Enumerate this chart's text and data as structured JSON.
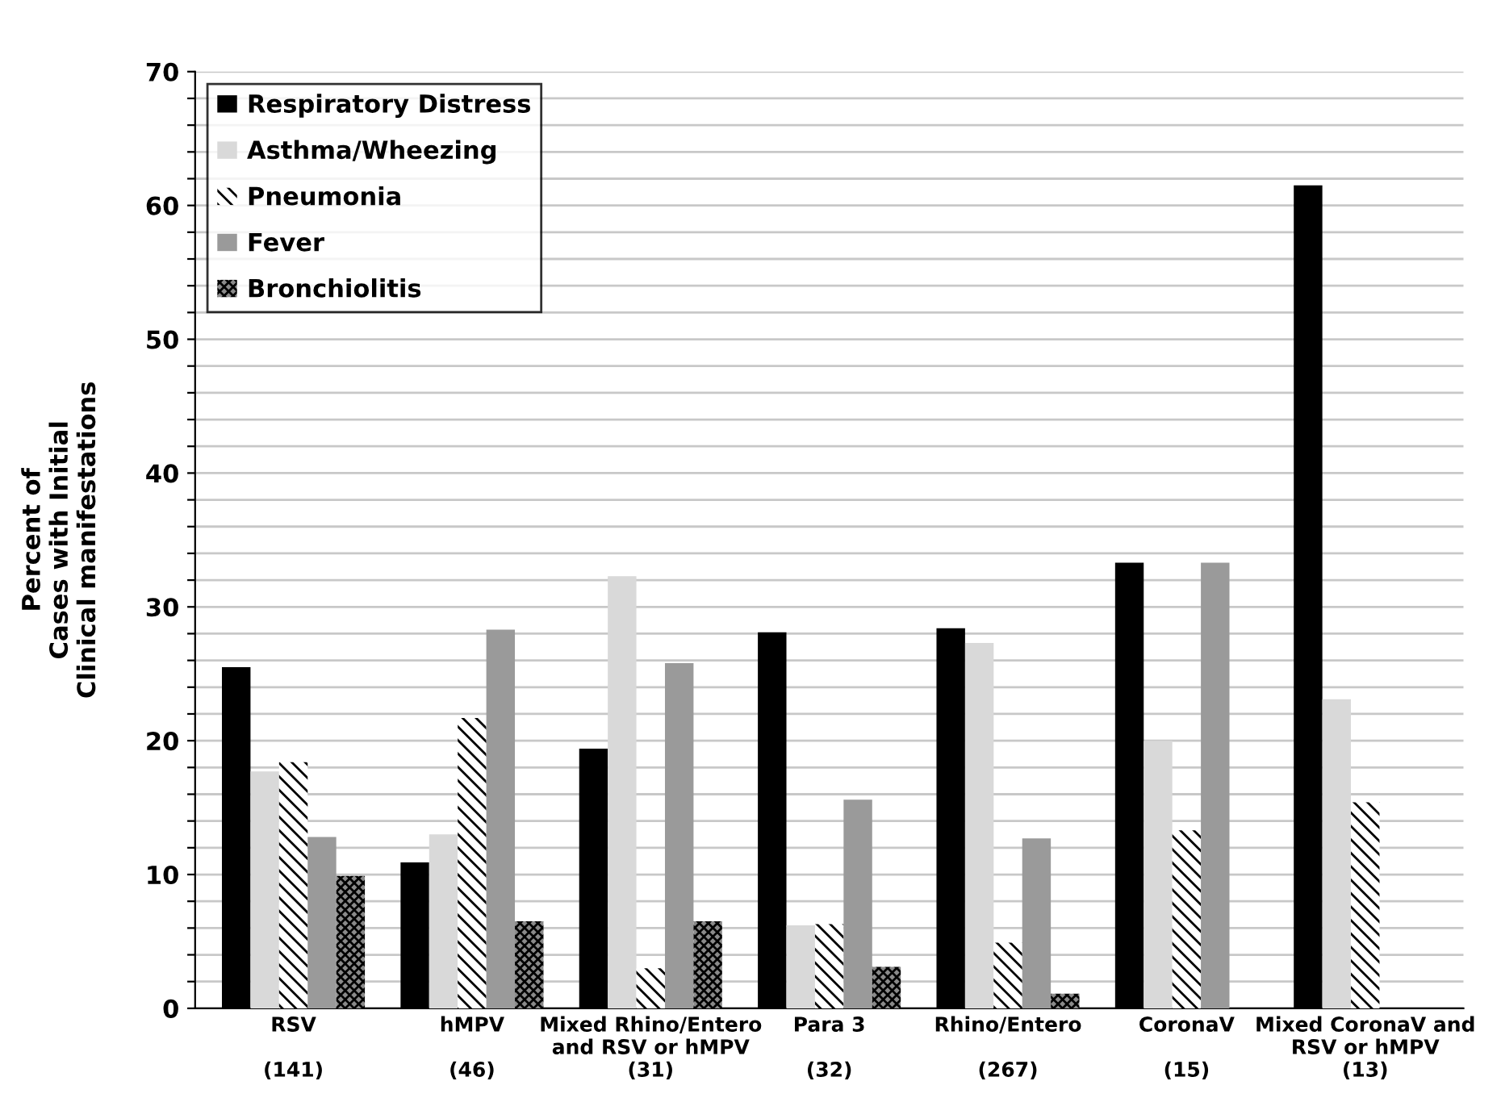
{
  "chart_data": {
    "type": "bar",
    "ylabel": "Percent of\nCases with Initial\nClinical manifestations",
    "categories": [
      "RSV\n\n(141)",
      "hMPV\n\n(46)",
      "Mixed Rhino/Entero\nand RSV or hMPV\n(31)",
      "Para 3\n\n(32)",
      "Rhino/Entero\n\n(267)",
      "CoronaV\n\n(15)",
      "Mixed CoronaV and\nRSV or hMPV\n(13)"
    ],
    "series": [
      {
        "name": "Respiratory Distress",
        "color": "#000000",
        "values": [
          25.5,
          10.9,
          19.4,
          28.1,
          28.4,
          33.3,
          61.5
        ]
      },
      {
        "name": "Asthma/Wheezing",
        "color": "#d9d9d9",
        "values": [
          17.7,
          13.0,
          32.3,
          6.2,
          27.3,
          20.0,
          23.1
        ]
      },
      {
        "name": "Pneumonia",
        "color": "#ffffff",
        "values": [
          18.4,
          21.7,
          3.0,
          6.3,
          4.9,
          13.3,
          15.4
        ]
      },
      {
        "name": "Fever",
        "color": "#9a9a9a",
        "values": [
          12.8,
          28.3,
          25.8,
          15.6,
          12.7,
          33.3,
          null
        ]
      },
      {
        "name": "Bronchiolitis",
        "color": "#8a8a8a",
        "values": [
          9.9,
          6.5,
          6.5,
          3.1,
          1.1,
          null,
          null
        ]
      }
    ],
    "ylim": [
      0,
      70
    ],
    "yticks": [
      0,
      {
        "value": 2,
        "label": null
      },
      {
        "value": 4,
        "label": null
      },
      {
        "value": 6,
        "label": null
      },
      {
        "value": 8,
        "label": null
      },
      10,
      {
        "value": 12,
        "label": null
      },
      {
        "value": 14,
        "label": null
      },
      {
        "value": 16,
        "label": null
      },
      {
        "value": 18,
        "label": null
      },
      20,
      {
        "value": 22,
        "label": null
      },
      {
        "value": 24,
        "label": null
      },
      {
        "value": 26,
        "label": null
      },
      {
        "value": 28,
        "label": null
      },
      30,
      {
        "value": 32,
        "label": null
      },
      {
        "value": 34,
        "label": null
      },
      {
        "value": 36,
        "label": null
      },
      {
        "value": 38,
        "label": null
      },
      40,
      {
        "value": 42,
        "label": null
      },
      {
        "value": 44,
        "label": null
      },
      {
        "value": 46,
        "label": null
      },
      {
        "value": 48,
        "label": null
      },
      50,
      {
        "value": 52,
        "label": null
      },
      {
        "value": 54,
        "label": null
      },
      {
        "value": 56,
        "label": null
      },
      {
        "value": 58,
        "label": null
      },
      60,
      {
        "value": 62,
        "label": null
      },
      {
        "value": 64,
        "label": null
      },
      {
        "value": 66,
        "label": null
      },
      {
        "value": 68,
        "label": null
      },
      70
    ],
    "grid": "y",
    "legend": "top left"
  }
}
